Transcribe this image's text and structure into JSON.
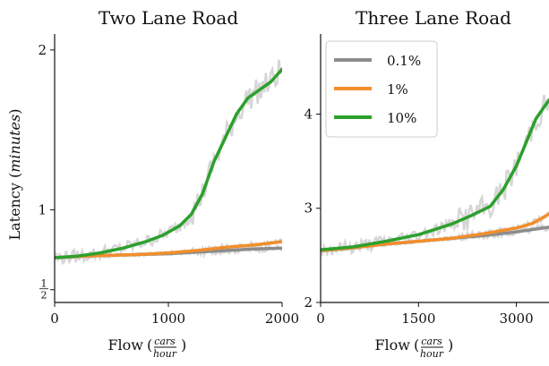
{
  "chart_data": [
    {
      "type": "line",
      "title": "Two Lane Road",
      "xlabel": "Flow",
      "xlabel_unit_num": "cars",
      "xlabel_unit_den": "hour",
      "ylabel": "Latency",
      "ylabel_unit": "minutes",
      "xlim": [
        0,
        2000
      ],
      "ylim": [
        0.42,
        2.1
      ],
      "xticks": [
        0,
        1000,
        2000
      ],
      "xtick_labels": [
        "0",
        "1000",
        "2000"
      ],
      "yticks": [
        0.5,
        1,
        2
      ],
      "ytick_labels": [
        "1/2",
        "1",
        "2"
      ],
      "grid": false,
      "series": [
        {
          "name": "0.1%",
          "color": "#8c8c8c",
          "x": [
            0,
            250,
            500,
            750,
            1000,
            1250,
            1500,
            1750,
            2000
          ],
          "y": [
            0.7,
            0.71,
            0.715,
            0.72,
            0.725,
            0.735,
            0.745,
            0.755,
            0.76
          ]
        },
        {
          "name": "1%",
          "color": "#f28e2b",
          "x": [
            0,
            250,
            500,
            750,
            1000,
            1250,
            1500,
            1750,
            2000
          ],
          "y": [
            0.7,
            0.71,
            0.715,
            0.72,
            0.73,
            0.745,
            0.765,
            0.78,
            0.8
          ]
        },
        {
          "name": "10%",
          "color": "#2ca02c",
          "x": [
            0,
            200,
            400,
            600,
            800,
            950,
            1100,
            1200,
            1300,
            1400,
            1500,
            1600,
            1700,
            1800,
            1900,
            2000
          ],
          "y": [
            0.7,
            0.71,
            0.73,
            0.76,
            0.8,
            0.84,
            0.9,
            0.97,
            1.1,
            1.3,
            1.45,
            1.6,
            1.7,
            1.75,
            1.8,
            1.88
          ]
        }
      ]
    },
    {
      "type": "line",
      "title": "Three Lane Road",
      "xlabel": "Flow",
      "xlabel_unit_num": "cars",
      "xlabel_unit_den": "hour",
      "xlim": [
        0,
        3500
      ],
      "ylim": [
        2,
        4.85
      ],
      "xticks": [
        0,
        1500,
        3000
      ],
      "xtick_labels": [
        "0",
        "1500",
        "3000"
      ],
      "yticks": [
        2,
        3,
        4
      ],
      "ytick_labels": [
        "2",
        "3",
        "4"
      ],
      "grid": false,
      "legend_position": "top-left",
      "series": [
        {
          "name": "0.1%",
          "color": "#8c8c8c",
          "x": [
            0,
            500,
            1000,
            1500,
            2000,
            2500,
            3000,
            3500
          ],
          "y": [
            2.55,
            2.58,
            2.62,
            2.65,
            2.68,
            2.71,
            2.75,
            2.8
          ]
        },
        {
          "name": "1%",
          "color": "#f28e2b",
          "x": [
            0,
            500,
            1000,
            1500,
            2000,
            2500,
            3000,
            3250,
            3500
          ],
          "y": [
            2.55,
            2.58,
            2.62,
            2.65,
            2.68,
            2.73,
            2.79,
            2.84,
            2.94
          ]
        },
        {
          "name": "10%",
          "color": "#2ca02c",
          "x": [
            0,
            500,
            1000,
            1500,
            2000,
            2300,
            2600,
            2800,
            3000,
            3150,
            3300,
            3500
          ],
          "y": [
            2.56,
            2.59,
            2.65,
            2.72,
            2.83,
            2.92,
            3.02,
            3.2,
            3.45,
            3.7,
            3.95,
            4.15
          ]
        }
      ]
    }
  ]
}
